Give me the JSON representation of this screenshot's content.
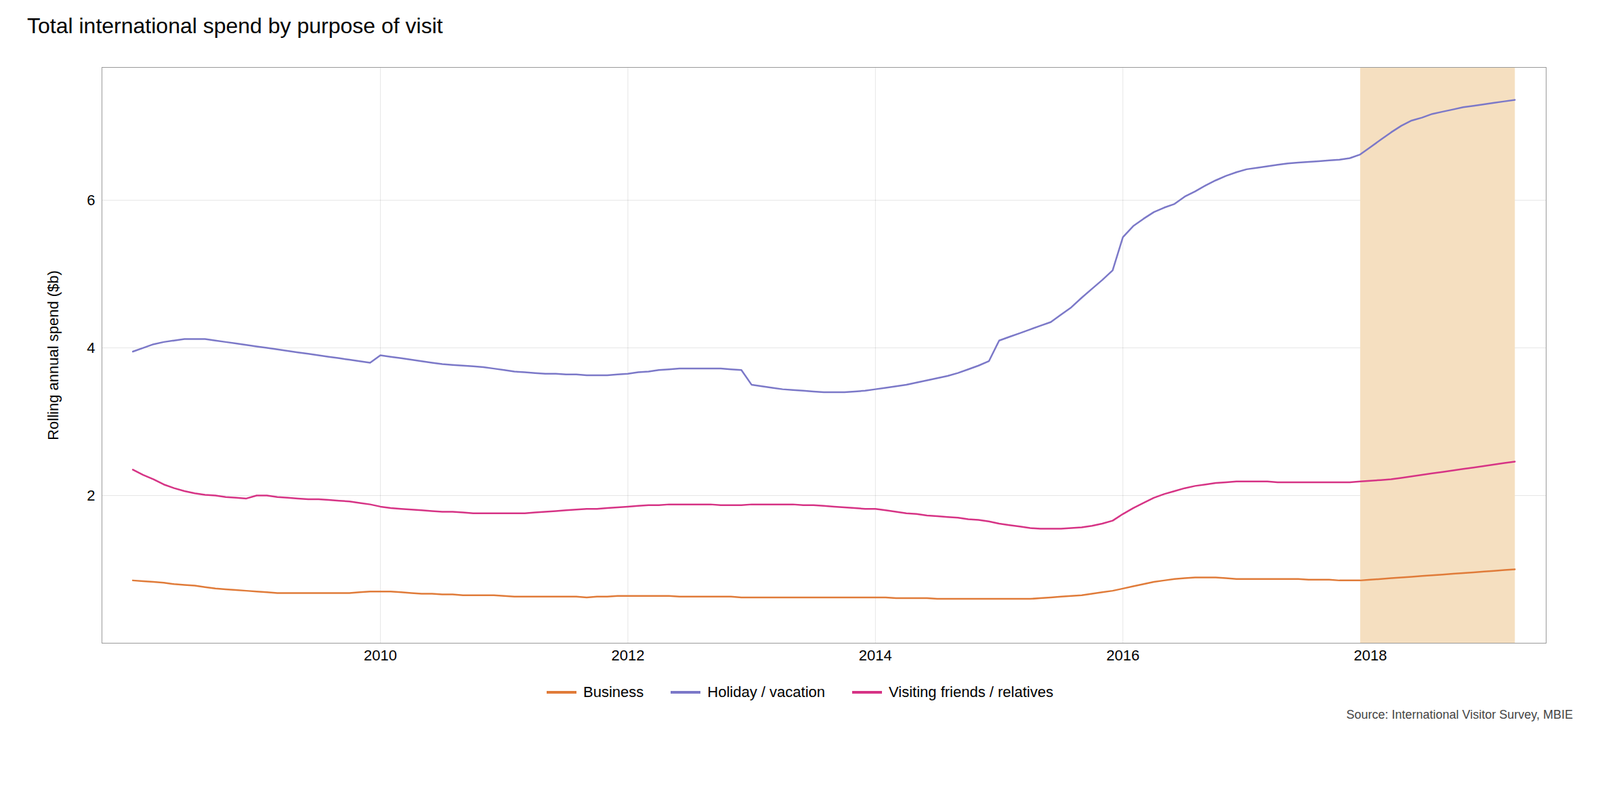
{
  "chart_data": {
    "type": "line",
    "title": "Total international spend by purpose of visit",
    "ylabel": "Rolling annual spend ($b)",
    "source": "Source: International Visitor Survey, MBIE",
    "shade": {
      "start": 2017.92,
      "end": 2019.17,
      "color": "#f5dfc0"
    },
    "xlim": [
      2007.75,
      2019.42
    ],
    "xticks": [
      2010,
      2012,
      2014,
      2016,
      2018
    ],
    "ylim": [
      0,
      7.8
    ],
    "yticks": [
      2,
      4,
      6
    ],
    "grid": true,
    "x": [
      2008.0,
      2008.083,
      2008.167,
      2008.25,
      2008.333,
      2008.417,
      2008.5,
      2008.583,
      2008.667,
      2008.75,
      2008.833,
      2008.917,
      2009.0,
      2009.083,
      2009.167,
      2009.25,
      2009.333,
      2009.417,
      2009.5,
      2009.583,
      2009.667,
      2009.75,
      2009.833,
      2009.917,
      2010.0,
      2010.083,
      2010.167,
      2010.25,
      2010.333,
      2010.417,
      2010.5,
      2010.583,
      2010.667,
      2010.75,
      2010.833,
      2010.917,
      2011.0,
      2011.083,
      2011.167,
      2011.25,
      2011.333,
      2011.417,
      2011.5,
      2011.583,
      2011.667,
      2011.75,
      2011.833,
      2011.917,
      2012.0,
      2012.083,
      2012.167,
      2012.25,
      2012.333,
      2012.417,
      2012.5,
      2012.583,
      2012.667,
      2012.75,
      2012.833,
      2012.917,
      2013.0,
      2013.083,
      2013.167,
      2013.25,
      2013.333,
      2013.417,
      2013.5,
      2013.583,
      2013.667,
      2013.75,
      2013.833,
      2013.917,
      2014.0,
      2014.083,
      2014.167,
      2014.25,
      2014.333,
      2014.417,
      2014.5,
      2014.583,
      2014.667,
      2014.75,
      2014.833,
      2014.917,
      2015.0,
      2015.083,
      2015.167,
      2015.25,
      2015.333,
      2015.417,
      2015.5,
      2015.583,
      2015.667,
      2015.75,
      2015.833,
      2015.917,
      2016.0,
      2016.083,
      2016.167,
      2016.25,
      2016.333,
      2016.417,
      2016.5,
      2016.583,
      2016.667,
      2016.75,
      2016.833,
      2016.917,
      2017.0,
      2017.083,
      2017.167,
      2017.25,
      2017.333,
      2017.417,
      2017.5,
      2017.583,
      2017.667,
      2017.75,
      2017.833,
      2017.917,
      2018.0,
      2018.083,
      2018.167,
      2018.25,
      2018.333,
      2018.417,
      2018.5,
      2018.583,
      2018.667,
      2018.75,
      2018.833,
      2018.917,
      2019.0,
      2019.083,
      2019.167
    ],
    "series": [
      {
        "name": "Business",
        "color": "#e07b39",
        "values": [
          0.85,
          0.84,
          0.83,
          0.82,
          0.8,
          0.79,
          0.78,
          0.76,
          0.74,
          0.73,
          0.72,
          0.71,
          0.7,
          0.69,
          0.68,
          0.68,
          0.68,
          0.68,
          0.68,
          0.68,
          0.68,
          0.68,
          0.69,
          0.7,
          0.7,
          0.7,
          0.69,
          0.68,
          0.67,
          0.67,
          0.66,
          0.66,
          0.65,
          0.65,
          0.65,
          0.65,
          0.64,
          0.63,
          0.63,
          0.63,
          0.63,
          0.63,
          0.63,
          0.63,
          0.62,
          0.63,
          0.63,
          0.64,
          0.64,
          0.64,
          0.64,
          0.64,
          0.64,
          0.63,
          0.63,
          0.63,
          0.63,
          0.63,
          0.63,
          0.62,
          0.62,
          0.62,
          0.62,
          0.62,
          0.62,
          0.62,
          0.62,
          0.62,
          0.62,
          0.62,
          0.62,
          0.62,
          0.62,
          0.62,
          0.61,
          0.61,
          0.61,
          0.61,
          0.6,
          0.6,
          0.6,
          0.6,
          0.6,
          0.6,
          0.6,
          0.6,
          0.6,
          0.6,
          0.61,
          0.62,
          0.63,
          0.64,
          0.65,
          0.67,
          0.69,
          0.71,
          0.74,
          0.77,
          0.8,
          0.83,
          0.85,
          0.87,
          0.88,
          0.89,
          0.89,
          0.89,
          0.88,
          0.87,
          0.87,
          0.87,
          0.87,
          0.87,
          0.87,
          0.87,
          0.86,
          0.86,
          0.86,
          0.85,
          0.85,
          0.85,
          0.86,
          0.87,
          0.88,
          0.89,
          0.9,
          0.91,
          0.92,
          0.93,
          0.94,
          0.95,
          0.96,
          0.97,
          0.98,
          0.99,
          1.0
        ]
      },
      {
        "name": "Holiday / vacation",
        "color": "#7b78c8",
        "values": [
          3.95,
          4.0,
          4.05,
          4.08,
          4.1,
          4.12,
          4.12,
          4.12,
          4.1,
          4.08,
          4.06,
          4.04,
          4.02,
          4.0,
          3.98,
          3.96,
          3.94,
          3.92,
          3.9,
          3.88,
          3.86,
          3.84,
          3.82,
          3.8,
          3.9,
          3.88,
          3.86,
          3.84,
          3.82,
          3.8,
          3.78,
          3.77,
          3.76,
          3.75,
          3.74,
          3.72,
          3.7,
          3.68,
          3.67,
          3.66,
          3.65,
          3.65,
          3.64,
          3.64,
          3.63,
          3.63,
          3.63,
          3.64,
          3.65,
          3.67,
          3.68,
          3.7,
          3.71,
          3.72,
          3.72,
          3.72,
          3.72,
          3.72,
          3.71,
          3.7,
          3.5,
          3.48,
          3.46,
          3.44,
          3.43,
          3.42,
          3.41,
          3.4,
          3.4,
          3.4,
          3.41,
          3.42,
          3.44,
          3.46,
          3.48,
          3.5,
          3.53,
          3.56,
          3.59,
          3.62,
          3.66,
          3.71,
          3.76,
          3.82,
          4.1,
          4.15,
          4.2,
          4.25,
          4.3,
          4.35,
          4.45,
          4.55,
          4.68,
          4.8,
          4.92,
          5.05,
          5.5,
          5.65,
          5.75,
          5.84,
          5.9,
          5.95,
          6.05,
          6.12,
          6.2,
          6.27,
          6.33,
          6.38,
          6.42,
          6.44,
          6.46,
          6.48,
          6.5,
          6.51,
          6.52,
          6.53,
          6.54,
          6.55,
          6.57,
          6.62,
          6.72,
          6.82,
          6.92,
          7.01,
          7.08,
          7.12,
          7.17,
          7.2,
          7.23,
          7.26,
          7.28,
          7.3,
          7.32,
          7.34,
          7.36
        ]
      },
      {
        "name": "Visiting friends / relatives",
        "color": "#d63385",
        "values": [
          2.35,
          2.28,
          2.22,
          2.15,
          2.1,
          2.06,
          2.03,
          2.01,
          2.0,
          1.98,
          1.97,
          1.96,
          2.0,
          2.0,
          1.98,
          1.97,
          1.96,
          1.95,
          1.95,
          1.94,
          1.93,
          1.92,
          1.9,
          1.88,
          1.85,
          1.83,
          1.82,
          1.81,
          1.8,
          1.79,
          1.78,
          1.78,
          1.77,
          1.76,
          1.76,
          1.76,
          1.76,
          1.76,
          1.76,
          1.77,
          1.78,
          1.79,
          1.8,
          1.81,
          1.82,
          1.82,
          1.83,
          1.84,
          1.85,
          1.86,
          1.87,
          1.87,
          1.88,
          1.88,
          1.88,
          1.88,
          1.88,
          1.87,
          1.87,
          1.87,
          1.88,
          1.88,
          1.88,
          1.88,
          1.88,
          1.87,
          1.87,
          1.86,
          1.85,
          1.84,
          1.83,
          1.82,
          1.82,
          1.8,
          1.78,
          1.76,
          1.75,
          1.73,
          1.72,
          1.71,
          1.7,
          1.68,
          1.67,
          1.65,
          1.62,
          1.6,
          1.58,
          1.56,
          1.55,
          1.55,
          1.55,
          1.56,
          1.57,
          1.59,
          1.62,
          1.66,
          1.75,
          1.83,
          1.9,
          1.97,
          2.02,
          2.06,
          2.1,
          2.13,
          2.15,
          2.17,
          2.18,
          2.19,
          2.19,
          2.19,
          2.19,
          2.18,
          2.18,
          2.18,
          2.18,
          2.18,
          2.18,
          2.18,
          2.18,
          2.19,
          2.2,
          2.21,
          2.22,
          2.24,
          2.26,
          2.28,
          2.3,
          2.32,
          2.34,
          2.36,
          2.38,
          2.4,
          2.42,
          2.44,
          2.46
        ]
      }
    ]
  }
}
